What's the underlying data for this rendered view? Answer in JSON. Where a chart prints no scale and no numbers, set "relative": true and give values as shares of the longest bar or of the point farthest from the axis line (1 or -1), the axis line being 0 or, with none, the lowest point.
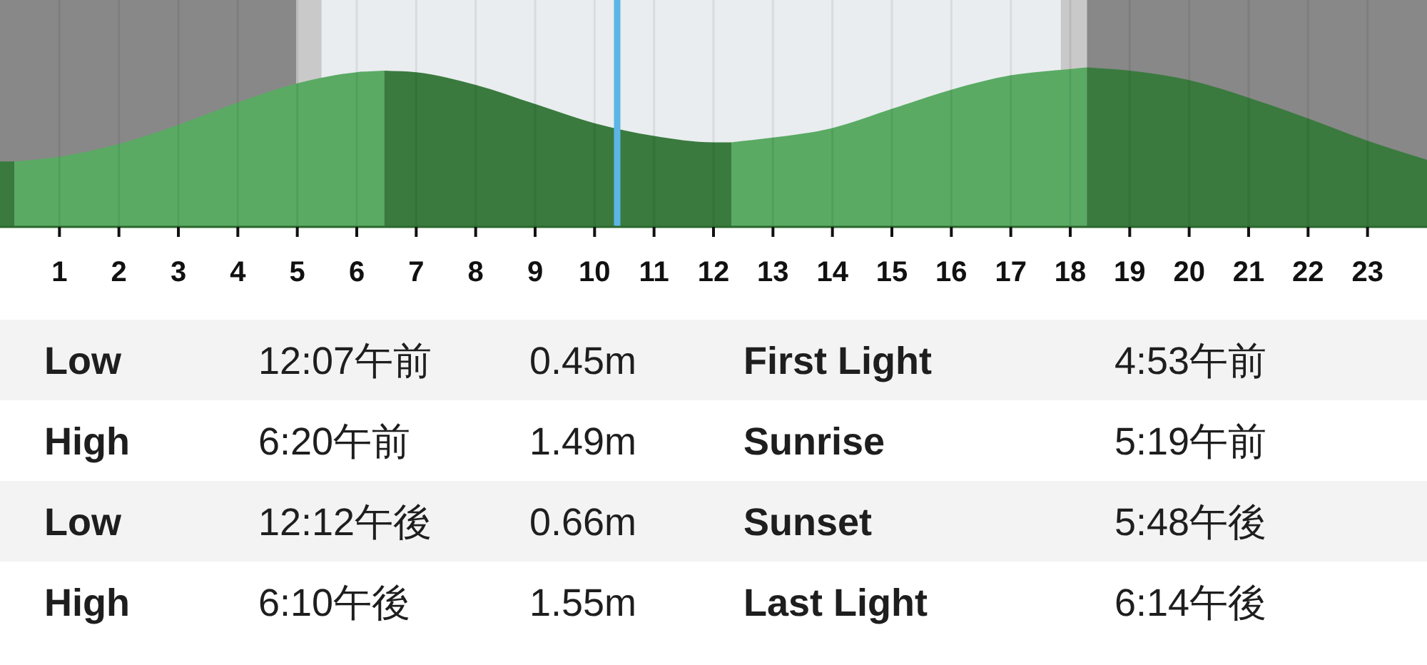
{
  "chart_data": {
    "type": "area",
    "relative": true,
    "xlim": [
      0,
      24
    ],
    "xticks": [
      1,
      2,
      3,
      4,
      5,
      6,
      7,
      8,
      9,
      10,
      11,
      12,
      13,
      14,
      15,
      16,
      17,
      18,
      19,
      20,
      21,
      22,
      23
    ],
    "grid": "x",
    "series": [
      {
        "color": "#3a7a3e",
        "x": [
          0,
          0.24
        ],
        "values": [
          0.41,
          0.41
        ]
      },
      {
        "color": "#5aaa64",
        "x": [
          0.24,
          1,
          2,
          3,
          4,
          5,
          6,
          6.46
        ],
        "values": [
          0.41,
          0.44,
          0.52,
          0.64,
          0.78,
          0.9,
          0.97,
          0.98
        ]
      },
      {
        "color": "#3a7a3e",
        "x": [
          6.46,
          7,
          8,
          9,
          10,
          11,
          12,
          12.3
        ],
        "values": [
          0.98,
          0.97,
          0.89,
          0.77,
          0.65,
          0.57,
          0.53,
          0.53
        ]
      },
      {
        "color": "#5aaa64",
        "x": [
          12.3,
          13,
          14,
          15,
          16,
          17,
          18,
          18.28
        ],
        "values": [
          0.53,
          0.56,
          0.62,
          0.74,
          0.86,
          0.95,
          0.99,
          1.0
        ]
      },
      {
        "color": "#3a7a3e",
        "x": [
          18.28,
          19,
          20,
          21,
          22,
          23,
          24
        ],
        "values": [
          1.0,
          0.98,
          0.92,
          0.81,
          0.68,
          0.54,
          0.42
        ]
      }
    ],
    "bands": [
      {
        "axis": "x",
        "from": 0,
        "to": 4.98,
        "color": "#888888"
      },
      {
        "axis": "x",
        "from": 4.98,
        "to": 5.41,
        "color": "#c9c9c9"
      },
      {
        "axis": "x",
        "from": 5.41,
        "to": 17.84,
        "color": "#e9edef"
      },
      {
        "axis": "x",
        "from": 17.84,
        "to": 18.28,
        "color": "#c9c9c9"
      },
      {
        "axis": "x",
        "from": 18.28,
        "to": 24,
        "color": "#888888"
      }
    ],
    "ref_lines": [
      {
        "axis": "x",
        "value": 10.38,
        "color": "#5bb5e6"
      }
    ],
    "annotations": [
      "Low",
      "12:07午前",
      "0.45m",
      "First Light",
      "4:53午前",
      "High",
      "6:20午前",
      "1.49m",
      "Sunrise",
      "5:19午前",
      "Low",
      "12:12午後",
      "0.66m",
      "Sunset",
      "5:48午後",
      "High",
      "6:10午後",
      "1.55m",
      "Last Light",
      "6:14午後"
    ]
  }
}
